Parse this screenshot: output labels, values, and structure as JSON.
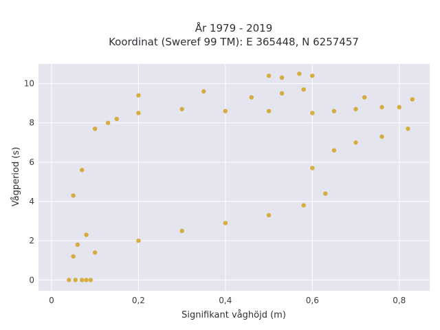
{
  "chart_data": {
    "type": "scatter",
    "title_line1": "År 1979 - 2019",
    "title_line2": "Koordinat (Sweref 99 TM): E 365448, N 6257457",
    "xlabel": "Signifikant våghöjd (m)",
    "ylabel": "Vågperiod (s)",
    "xlim": [
      -0.03,
      0.87
    ],
    "ylim": [
      -0.55,
      11.0
    ],
    "x_ticks": [
      0,
      0.2,
      0.4,
      0.6,
      0.8
    ],
    "x_tick_labels": [
      "0",
      "0,2",
      "0,4",
      "0,6",
      "0,8"
    ],
    "y_ticks": [
      0,
      2,
      4,
      6,
      8,
      10
    ],
    "y_tick_labels": [
      "0",
      "2",
      "4",
      "6",
      "8",
      "10"
    ],
    "grid": true,
    "plot_bg": "#e5e5ef",
    "marker_color": "#d4a21f",
    "series": [
      {
        "points": [
          [
            0.04,
            0.0
          ],
          [
            0.055,
            0.0
          ],
          [
            0.07,
            0.0
          ],
          [
            0.08,
            0.0
          ],
          [
            0.09,
            0.0
          ],
          [
            0.05,
            4.3
          ],
          [
            0.07,
            5.6
          ],
          [
            0.1,
            7.7
          ],
          [
            0.13,
            8.0
          ],
          [
            0.15,
            8.2
          ],
          [
            0.2,
            8.5
          ],
          [
            0.3,
            8.7
          ],
          [
            0.4,
            8.6
          ],
          [
            0.5,
            8.6
          ],
          [
            0.6,
            8.5
          ],
          [
            0.65,
            8.6
          ],
          [
            0.7,
            8.7
          ],
          [
            0.76,
            8.8
          ],
          [
            0.8,
            8.8
          ],
          [
            0.83,
            9.2
          ],
          [
            0.2,
            9.4
          ],
          [
            0.35,
            9.6
          ],
          [
            0.46,
            9.3
          ],
          [
            0.53,
            9.5
          ],
          [
            0.58,
            9.7
          ],
          [
            0.5,
            10.4
          ],
          [
            0.53,
            10.3
          ],
          [
            0.57,
            10.5
          ],
          [
            0.6,
            10.4
          ],
          [
            0.72,
            9.3
          ],
          [
            0.82,
            7.7
          ],
          [
            0.76,
            7.3
          ],
          [
            0.7,
            7.0
          ],
          [
            0.65,
            6.6
          ],
          [
            0.6,
            5.7
          ],
          [
            0.63,
            4.4
          ],
          [
            0.58,
            3.8
          ],
          [
            0.5,
            3.3
          ],
          [
            0.4,
            2.9
          ],
          [
            0.3,
            2.5
          ],
          [
            0.2,
            2.0
          ],
          [
            0.1,
            1.4
          ],
          [
            0.05,
            1.2
          ],
          [
            0.06,
            1.8
          ],
          [
            0.08,
            2.3
          ]
        ]
      }
    ]
  }
}
